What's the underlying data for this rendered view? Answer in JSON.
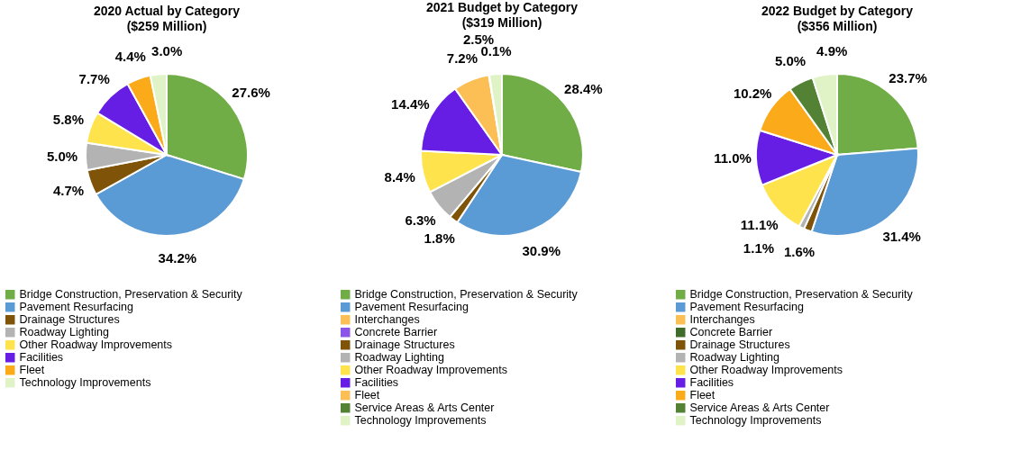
{
  "chart_data": [
    {
      "type": "pie",
      "title": "2020 Actual by Category",
      "subtitle": "($259 Million)",
      "legend": "bottom",
      "categories": [
        "Bridge Construction, Preservation & Security",
        "Pavement Resurfacing",
        "Drainage Structures",
        "Roadway Lighting",
        "Other Roadway Improvements",
        "Facilities",
        "Fleet",
        "Technology Improvements"
      ],
      "values": [
        27.6,
        34.2,
        4.7,
        5.0,
        5.8,
        7.7,
        4.4,
        3.0
      ],
      "value_labels": [
        "27.6%",
        "34.2%",
        "4.7%",
        "5.0%",
        "5.8%",
        "7.7%",
        "4.4%",
        "3.0%"
      ],
      "colors": [
        "#70ad47",
        "#5b9bd5",
        "#7f5409",
        "#b3b3b3",
        "#ffe34d",
        "#661ee5",
        "#fbaa1a",
        "#dff3c6"
      ]
    },
    {
      "type": "pie",
      "title": "2021 Budget by Category",
      "subtitle": "($319 Million)",
      "legend": "bottom",
      "categories": [
        "Bridge Construction, Preservation & Security",
        "Pavement Resurfacing",
        "Interchanges",
        "Concrete Barrier",
        "Drainage Structures",
        "Roadway Lighting",
        "Other Roadway Improvements",
        "Facilities",
        "Fleet",
        "Service Areas & Arts Center",
        "Technology Improvements"
      ],
      "values": [
        28.4,
        30.9,
        0,
        0,
        1.8,
        6.3,
        8.4,
        14.4,
        7.2,
        0.1,
        2.5
      ],
      "value_labels": [
        "28.4%",
        "30.9%",
        null,
        null,
        "1.8%",
        "6.3%",
        "8.4%",
        "14.4%",
        "7.2%",
        "0.1%",
        "2.5%"
      ],
      "colors": [
        "#70ad47",
        "#5b9bd5",
        "#fbbf55",
        "#8b55e8",
        "#7f5409",
        "#b3b3b3",
        "#ffe34d",
        "#661ee5",
        "#fbbf55",
        "#548235",
        "#dff3c6"
      ]
    },
    {
      "type": "pie",
      "title": "2022 Budget by Category",
      "subtitle": "($356 Million)",
      "legend": "bottom",
      "categories": [
        "Bridge Construction, Preservation & Security",
        "Pavement Resurfacing",
        "Interchanges",
        "Concrete Barrier",
        "Drainage Structures",
        "Roadway Lighting",
        "Other Roadway Improvements",
        "Facilities",
        "Fleet",
        "Service Areas & Arts Center",
        "Technology Improvements"
      ],
      "values": [
        23.7,
        31.4,
        0,
        0,
        1.6,
        1.1,
        11.1,
        11.0,
        10.2,
        5.0,
        4.9
      ],
      "value_labels": [
        "23.7%",
        "31.4%",
        null,
        null,
        "1.6%",
        "1.1%",
        "11.1%",
        "11.0%",
        "10.2%",
        "5.0%",
        "4.9%"
      ],
      "colors": [
        "#70ad47",
        "#5b9bd5",
        "#fbbf55",
        "#3f6b2b",
        "#7f5409",
        "#b3b3b3",
        "#ffe34d",
        "#661ee5",
        "#fbaa1a",
        "#548235",
        "#dff3c6"
      ]
    }
  ]
}
